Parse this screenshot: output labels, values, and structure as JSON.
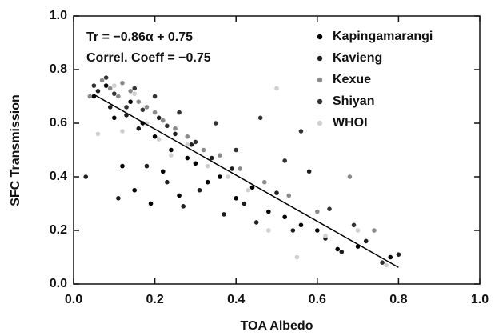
{
  "chart_data": {
    "type": "scatter",
    "xlabel": "TOA Albedo",
    "ylabel": "SFC Transmission",
    "annotations": [
      "Tr = −0.86α + 0.75",
      "Correl. Coeff = −0.75"
    ],
    "xlim": [
      0,
      1
    ],
    "ylim": [
      0,
      1
    ],
    "xticks": [
      {
        "value": 0,
        "label": "0.0"
      },
      0.2,
      0.4,
      0.6,
      0.8,
      {
        "value": 1,
        "label": "1.0"
      }
    ],
    "yticks": [
      {
        "value": 0,
        "label": "0.0"
      },
      0.2,
      0.4,
      0.6,
      0.8,
      {
        "value": 1,
        "label": "1.0"
      }
    ],
    "legend": "upper right",
    "fit_line": {
      "color": "#000000",
      "x": [
        0.05,
        0.8
      ],
      "y": [
        0.707,
        0.062
      ]
    },
    "series": [
      {
        "name": "Kapingamarangi",
        "color": "#000000",
        "x": [
          0.05,
          0.08,
          0.1,
          0.12,
          0.14,
          0.15,
          0.17,
          0.19,
          0.2,
          0.22,
          0.24,
          0.26,
          0.28,
          0.3,
          0.33,
          0.36,
          0.4,
          0.44,
          0.48,
          0.52,
          0.56,
          0.6,
          0.65,
          0.7,
          0.78
        ],
        "values": [
          0.7,
          0.74,
          0.62,
          0.44,
          0.68,
          0.35,
          0.6,
          0.3,
          0.55,
          0.42,
          0.5,
          0.33,
          0.47,
          0.45,
          0.38,
          0.4,
          0.32,
          0.36,
          0.27,
          0.25,
          0.22,
          0.2,
          0.13,
          0.14,
          0.1
        ]
      },
      {
        "name": "Kavieng",
        "color": "#1e1e1e",
        "x": [
          0.03,
          0.06,
          0.09,
          0.11,
          0.13,
          0.16,
          0.18,
          0.21,
          0.23,
          0.25,
          0.27,
          0.29,
          0.31,
          0.34,
          0.37,
          0.39,
          0.42,
          0.45,
          0.5,
          0.54,
          0.58,
          0.62,
          0.66,
          0.72,
          0.8
        ],
        "values": [
          0.4,
          0.72,
          0.66,
          0.32,
          0.63,
          0.58,
          0.44,
          0.62,
          0.38,
          0.56,
          0.29,
          0.52,
          0.35,
          0.47,
          0.26,
          0.43,
          0.3,
          0.23,
          0.34,
          0.2,
          0.42,
          0.17,
          0.12,
          0.16,
          0.11
        ]
      },
      {
        "name": "Kexue",
        "color": "#8a8a8a",
        "x": [
          0.04,
          0.07,
          0.09,
          0.11,
          0.12,
          0.14,
          0.16,
          0.18,
          0.2,
          0.22,
          0.25,
          0.28,
          0.32,
          0.36,
          0.41,
          0.47,
          0.53,
          0.6,
          0.68,
          0.74
        ],
        "values": [
          0.7,
          0.76,
          0.73,
          0.7,
          0.75,
          0.72,
          0.68,
          0.66,
          0.64,
          0.61,
          0.58,
          0.55,
          0.5,
          0.48,
          0.43,
          0.38,
          0.33,
          0.27,
          0.4,
          0.2
        ]
      },
      {
        "name": "Shiyan",
        "color": "#333333",
        "x": [
          0.05,
          0.08,
          0.1,
          0.13,
          0.15,
          0.17,
          0.2,
          0.23,
          0.26,
          0.3,
          0.35,
          0.4,
          0.46,
          0.52,
          0.56,
          0.63,
          0.69,
          0.76
        ],
        "values": [
          0.74,
          0.77,
          0.71,
          0.66,
          0.73,
          0.65,
          0.7,
          0.59,
          0.64,
          0.53,
          0.6,
          0.5,
          0.62,
          0.46,
          0.57,
          0.28,
          0.22,
          0.08
        ]
      },
      {
        "name": "WHOI",
        "color": "#cfcfcf",
        "x": [
          0.06,
          0.1,
          0.12,
          0.15,
          0.18,
          0.21,
          0.24,
          0.28,
          0.33,
          0.38,
          0.43,
          0.48,
          0.5,
          0.55,
          0.62,
          0.7,
          0.77
        ],
        "values": [
          0.56,
          0.74,
          0.57,
          0.71,
          0.6,
          0.54,
          0.48,
          0.52,
          0.44,
          0.4,
          0.35,
          0.2,
          0.73,
          0.1,
          0.18,
          0.2,
          0.07
        ]
      }
    ]
  }
}
